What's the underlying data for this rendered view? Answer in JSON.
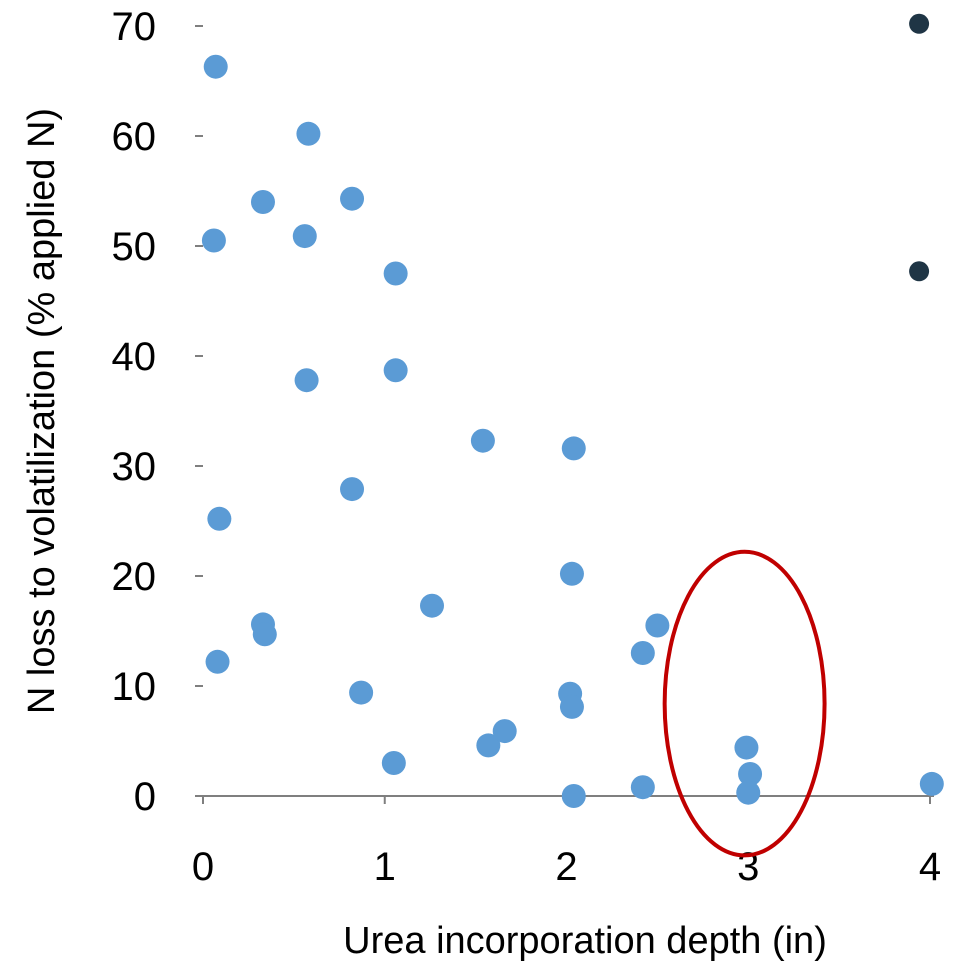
{
  "chart_data": {
    "type": "scatter",
    "title": "",
    "xlabel": "Urea incorporation depth (in)",
    "ylabel": "N loss to volatilization  (% applied N)",
    "xlim": [
      0,
      4
    ],
    "ylim": [
      0,
      70
    ],
    "xticks": [
      "0",
      "1",
      "2",
      "3",
      "4"
    ],
    "yticks": [
      "0",
      "10",
      "20",
      "30",
      "40",
      "50",
      "60",
      "70"
    ],
    "grid": false,
    "legend": "none",
    "series": [
      {
        "color": "#5b9bd5",
        "points": [
          [
            0.07,
            66.3
          ],
          [
            0.06,
            50.5
          ],
          [
            0.09,
            25.2
          ],
          [
            0.08,
            12.2
          ],
          [
            0.33,
            54.0
          ],
          [
            0.33,
            15.6
          ],
          [
            0.34,
            14.7
          ],
          [
            0.58,
            60.2
          ],
          [
            0.56,
            50.9
          ],
          [
            0.57,
            37.8
          ],
          [
            0.82,
            54.3
          ],
          [
            0.82,
            27.9
          ],
          [
            0.87,
            9.4
          ],
          [
            1.06,
            47.5
          ],
          [
            1.06,
            38.7
          ],
          [
            1.05,
            3.0
          ],
          [
            1.26,
            17.3
          ],
          [
            1.54,
            32.3
          ],
          [
            1.57,
            4.6
          ],
          [
            1.66,
            5.9
          ],
          [
            2.04,
            31.6
          ],
          [
            2.03,
            20.2
          ],
          [
            2.02,
            9.3
          ],
          [
            2.03,
            8.1
          ],
          [
            2.04,
            0.0
          ],
          [
            2.42,
            0.8
          ],
          [
            2.42,
            13.0
          ],
          [
            2.5,
            15.5
          ],
          [
            2.99,
            4.4
          ],
          [
            3.01,
            2.0
          ],
          [
            3.0,
            0.3
          ],
          [
            4.01,
            1.1
          ]
        ]
      },
      {
        "color": "#1f3545",
        "points": [
          [
            3.94,
            70.2
          ],
          [
            3.94,
            47.7
          ]
        ]
      }
    ],
    "annotations": [
      {
        "type": "ellipse",
        "center": [
          2.98,
          8.4
        ],
        "rx": 0.44,
        "ry": 13.8,
        "color": "#c00000"
      }
    ],
    "colors": {
      "axis": "#7f7f7f",
      "text": "#000000"
    }
  }
}
